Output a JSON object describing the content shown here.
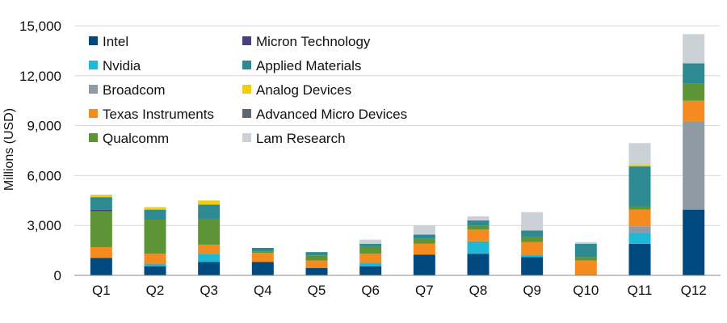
{
  "chart_data": {
    "type": "bar",
    "stacked": true,
    "title": "",
    "xlabel": "",
    "ylabel": "Millions (USD)",
    "ylim": [
      0,
      15000
    ],
    "yticks": [
      0,
      3000,
      6000,
      9000,
      12000,
      15000
    ],
    "ytick_labels": [
      "0",
      "3,000",
      "6,000",
      "9,000",
      "12,000",
      "15,000"
    ],
    "grid": true,
    "legend_position": "top-left, two columns",
    "categories": [
      "Q1",
      "Q2",
      "Q3",
      "Q4",
      "Q5",
      "Q6",
      "Q7",
      "Q8",
      "Q9",
      "Q10",
      "Q11",
      "Q12"
    ],
    "series": [
      {
        "name": "Intel",
        "color": "#004a80",
        "values": [
          1050,
          550,
          800,
          800,
          450,
          550,
          1250,
          1300,
          1100,
          0,
          1900,
          3950
        ]
      },
      {
        "name": "Nvidia",
        "color": "#1fb8d6",
        "values": [
          0,
          150,
          500,
          0,
          0,
          200,
          0,
          750,
          150,
          0,
          650,
          0
        ]
      },
      {
        "name": "Broadcom",
        "color": "#8f9aa5",
        "values": [
          0,
          0,
          0,
          0,
          0,
          0,
          0,
          0,
          0,
          0,
          400,
          5300
        ]
      },
      {
        "name": "Texas Instruments",
        "color": "#f38b1f",
        "values": [
          650,
          600,
          550,
          550,
          450,
          550,
          650,
          700,
          750,
          900,
          1000,
          1250
        ]
      },
      {
        "name": "Qualcomm",
        "color": "#5d9436",
        "values": [
          2150,
          2050,
          1550,
          100,
          300,
          450,
          300,
          250,
          300,
          200,
          200,
          1050
        ]
      },
      {
        "name": "Micron Technology",
        "color": "#4b3d7f",
        "values": [
          100,
          0,
          0,
          0,
          0,
          0,
          0,
          0,
          0,
          0,
          0,
          0
        ]
      },
      {
        "name": "Applied Materials",
        "color": "#2d8a91",
        "values": [
          750,
          600,
          850,
          200,
          200,
          150,
          250,
          300,
          400,
          800,
          2400,
          1200
        ]
      },
      {
        "name": "Analog Devices",
        "color": "#f2cc0f",
        "values": [
          150,
          150,
          250,
          0,
          0,
          0,
          0,
          0,
          0,
          0,
          100,
          0
        ]
      },
      {
        "name": "Advanced Micro Devices",
        "color": "#5e6670",
        "values": [
          0,
          0,
          0,
          0,
          0,
          0,
          0,
          0,
          0,
          0,
          0,
          0
        ]
      },
      {
        "name": "Lam Research",
        "color": "#cbd1d7",
        "values": [
          0,
          0,
          0,
          0,
          0,
          250,
          550,
          250,
          1100,
          100,
          1300,
          1750
        ]
      }
    ],
    "legend_columns": [
      [
        "Intel",
        "Nvidia",
        "Broadcom",
        "Texas Instruments",
        "Qualcomm"
      ],
      [
        "Micron Technology",
        "Applied Materials",
        "Analog Devices",
        "Advanced Micro Devices",
        "Lam Research"
      ]
    ]
  }
}
